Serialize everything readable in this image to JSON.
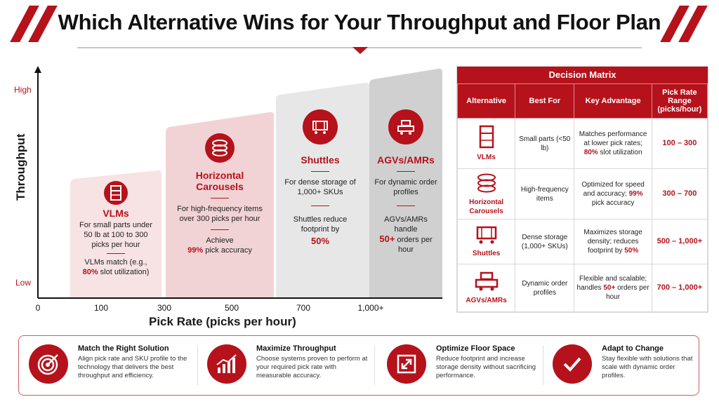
{
  "title": "Which Alternative Wins for Your Throughput and Floor Plan",
  "chart": {
    "y_axis_title": "Throughput",
    "y_high": "High",
    "y_low": "Low",
    "x_axis_title": "Pick Rate (picks per hour)",
    "x_ticks": [
      "0",
      "100",
      "300",
      "500",
      "700",
      "1,000+"
    ]
  },
  "columns": {
    "vlms": {
      "name": "VLMs",
      "desc": "For small parts under 50 lb at 100 to 300 picks per hour",
      "detail_pre": "VLMs match (e.g., ",
      "detail_hl": "80%",
      "detail_post": " slot utilization)"
    },
    "carousels": {
      "name": "Horizontal Carousels",
      "desc": "For high-frequency items over 300 picks per hour",
      "detail_pre": "Achieve",
      "detail_hl": "99%",
      "detail_post": " pick accuracy"
    },
    "shuttles": {
      "name": "Shuttles",
      "desc": "For dense storage of 1,000+ SKUs",
      "detail_pre": "Shuttles reduce footprint by",
      "detail_hl": "50%"
    },
    "agvs": {
      "name": "AGVs/AMRs",
      "desc": "For dynamic order profiles",
      "detail_pre": "AGVs/AMRs handle",
      "detail_hl": "50+",
      "detail_post": " orders per hour"
    }
  },
  "matrix": {
    "title": "Decision Matrix",
    "headers": [
      "Alternative",
      "Best For",
      "Key Advantage",
      "Pick Rate Range (picks/hour)"
    ],
    "rows": [
      {
        "name": "VLMs",
        "best_for": "Small parts (<50 lb)",
        "adv_pre": "Matches performance at lower pick rates; ",
        "adv_hl": "80%",
        "adv_post": " slot utilization",
        "range": "100 – 300"
      },
      {
        "name": "Horizontal Carousels",
        "best_for": "High-frequency items",
        "adv_pre": "Optimized for speed and accuracy; ",
        "adv_hl": "99%",
        "adv_post": " pick accuracy",
        "range": "300 – 700"
      },
      {
        "name": "Shuttles",
        "best_for": "Dense storage (1,000+ SKUs)",
        "adv_pre": "Maximizes storage density; reduces footprint by ",
        "adv_hl": "50%",
        "adv_post": "",
        "range": "500 – 1,000+"
      },
      {
        "name": "AGVs/AMRs",
        "best_for": "Dynamic order profiles",
        "adv_pre": "Flexible and scalable; handles ",
        "adv_hl": "50+",
        "adv_post": " orders per hour",
        "range": "700 – 1,000+"
      }
    ]
  },
  "benefits": [
    {
      "title": "Match the Right Solution",
      "body": "Align pick rate and SKU profile to the technology that delivers the best throughput and efficiency.",
      "icon": "target-icon"
    },
    {
      "title": "Maximize Throughput",
      "body": "Choose systems proven to perform at your required pick rate with measurable accuracy.",
      "icon": "growth-chart-icon"
    },
    {
      "title": "Optimize Floor Space",
      "body": "Reduce footprint and increase storage density without sacrificing performance.",
      "icon": "compress-icon"
    },
    {
      "title": "Adapt to Change",
      "body": "Stay flexible with solutions that scale with dynamic order profiles.",
      "icon": "checkmark-icon"
    }
  ],
  "colors": {
    "accent": "#b5121b",
    "light_pink": "#f5dcdd",
    "light_gray": "#e8e8e8",
    "mid_gray": "#cfcfcf"
  }
}
